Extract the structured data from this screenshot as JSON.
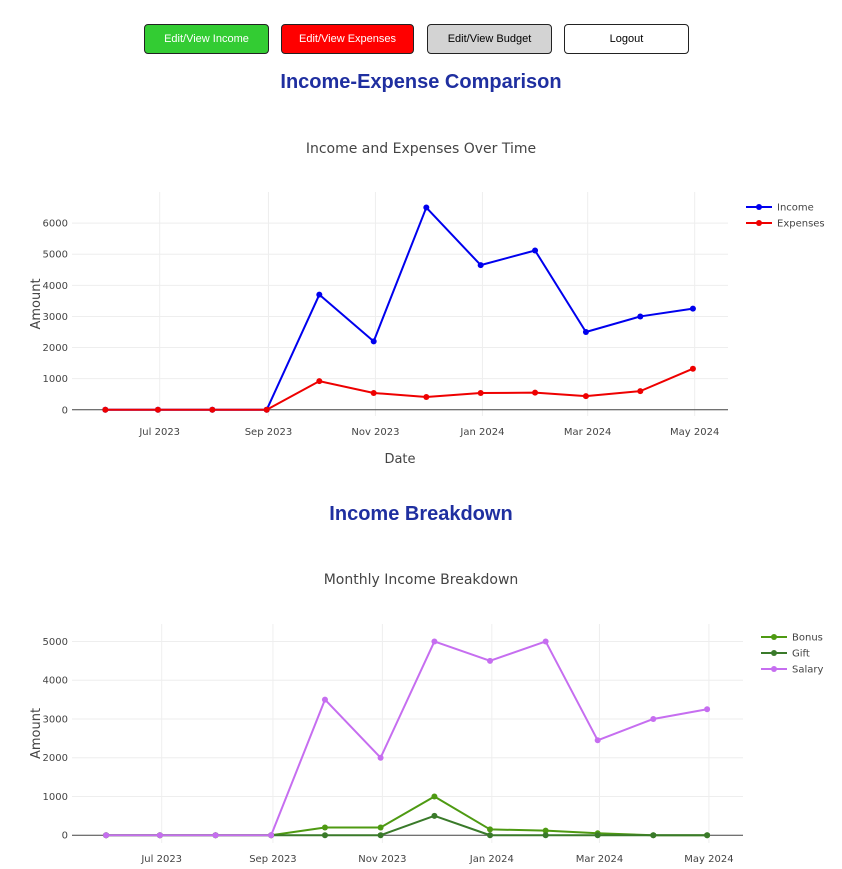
{
  "nav": {
    "income_label": "Edit/View Income",
    "expenses_label": "Edit/View Expenses",
    "budget_label": "Edit/View Budget",
    "logout_label": "Logout"
  },
  "sections": {
    "comparison_title": "Income-Expense Comparison",
    "breakdown_title": "Income Breakdown"
  },
  "colors": {
    "income": "#0000ee",
    "expenses": "#ee0000",
    "bonus": "#4e9a12",
    "gift": "#3a7a2a",
    "salary": "#c66ef0"
  },
  "chart_data": [
    {
      "type": "line",
      "title": "Income and Expenses Over Time",
      "xlabel": "Date",
      "ylabel": "Amount",
      "x": [
        "2023-05-31",
        "2023-06-30",
        "2023-07-31",
        "2023-08-31",
        "2023-09-30",
        "2023-10-31",
        "2023-11-30",
        "2023-12-31",
        "2024-01-31",
        "2024-02-29",
        "2024-03-31",
        "2024-04-30"
      ],
      "xticks": [
        {
          "date": "2023-07-01",
          "label": "Jul 2023"
        },
        {
          "date": "2023-09-01",
          "label": "Sep 2023"
        },
        {
          "date": "2023-11-01",
          "label": "Nov 2023"
        },
        {
          "date": "2024-01-01",
          "label": "Jan 2024"
        },
        {
          "date": "2024-03-01",
          "label": "Mar 2024"
        },
        {
          "date": "2024-05-01",
          "label": "May 2024"
        }
      ],
      "yticks": [
        0,
        1000,
        2000,
        3000,
        4000,
        5000,
        6000
      ],
      "ylim": [
        -200,
        7000
      ],
      "grid": true,
      "legend": "top-right",
      "series": [
        {
          "name": "Income",
          "color": "#0000ee",
          "values": [
            0,
            0,
            0,
            0,
            3700,
            2200,
            6500,
            4650,
            5120,
            2500,
            3000,
            3250
          ]
        },
        {
          "name": "Expenses",
          "color": "#ee0000",
          "values": [
            0,
            0,
            0,
            0,
            920,
            540,
            410,
            540,
            550,
            440,
            600,
            1320
          ]
        }
      ]
    },
    {
      "type": "line",
      "title": "Monthly Income Breakdown",
      "xlabel": "",
      "ylabel": "Amount",
      "x": [
        "2023-05-31",
        "2023-06-30",
        "2023-07-31",
        "2023-08-31",
        "2023-09-30",
        "2023-10-31",
        "2023-11-30",
        "2023-12-31",
        "2024-01-31",
        "2024-02-29",
        "2024-03-31",
        "2024-04-30"
      ],
      "xticks": [
        {
          "date": "2023-07-01",
          "label": "Jul 2023"
        },
        {
          "date": "2023-09-01",
          "label": "Sep 2023"
        },
        {
          "date": "2023-11-01",
          "label": "Nov 2023"
        },
        {
          "date": "2024-01-01",
          "label": "Jan 2024"
        },
        {
          "date": "2024-03-01",
          "label": "Mar 2024"
        },
        {
          "date": "2024-05-01",
          "label": "May 2024"
        }
      ],
      "yticks": [
        0,
        1000,
        2000,
        3000,
        4000,
        5000
      ],
      "ylim": [
        -200,
        5450
      ],
      "grid": true,
      "legend": "top-right",
      "series": [
        {
          "name": "Bonus",
          "color": "#4e9a12",
          "values": [
            0,
            0,
            0,
            0,
            200,
            200,
            1000,
            150,
            120,
            50,
            0,
            0
          ]
        },
        {
          "name": "Gift",
          "color": "#3a7a2a",
          "values": [
            0,
            0,
            0,
            0,
            0,
            0,
            500,
            0,
            0,
            0,
            0,
            0
          ]
        },
        {
          "name": "Salary",
          "color": "#c66ef0",
          "values": [
            0,
            0,
            0,
            0,
            3500,
            2000,
            5000,
            4500,
            5000,
            2450,
            3000,
            3250
          ]
        }
      ]
    }
  ]
}
